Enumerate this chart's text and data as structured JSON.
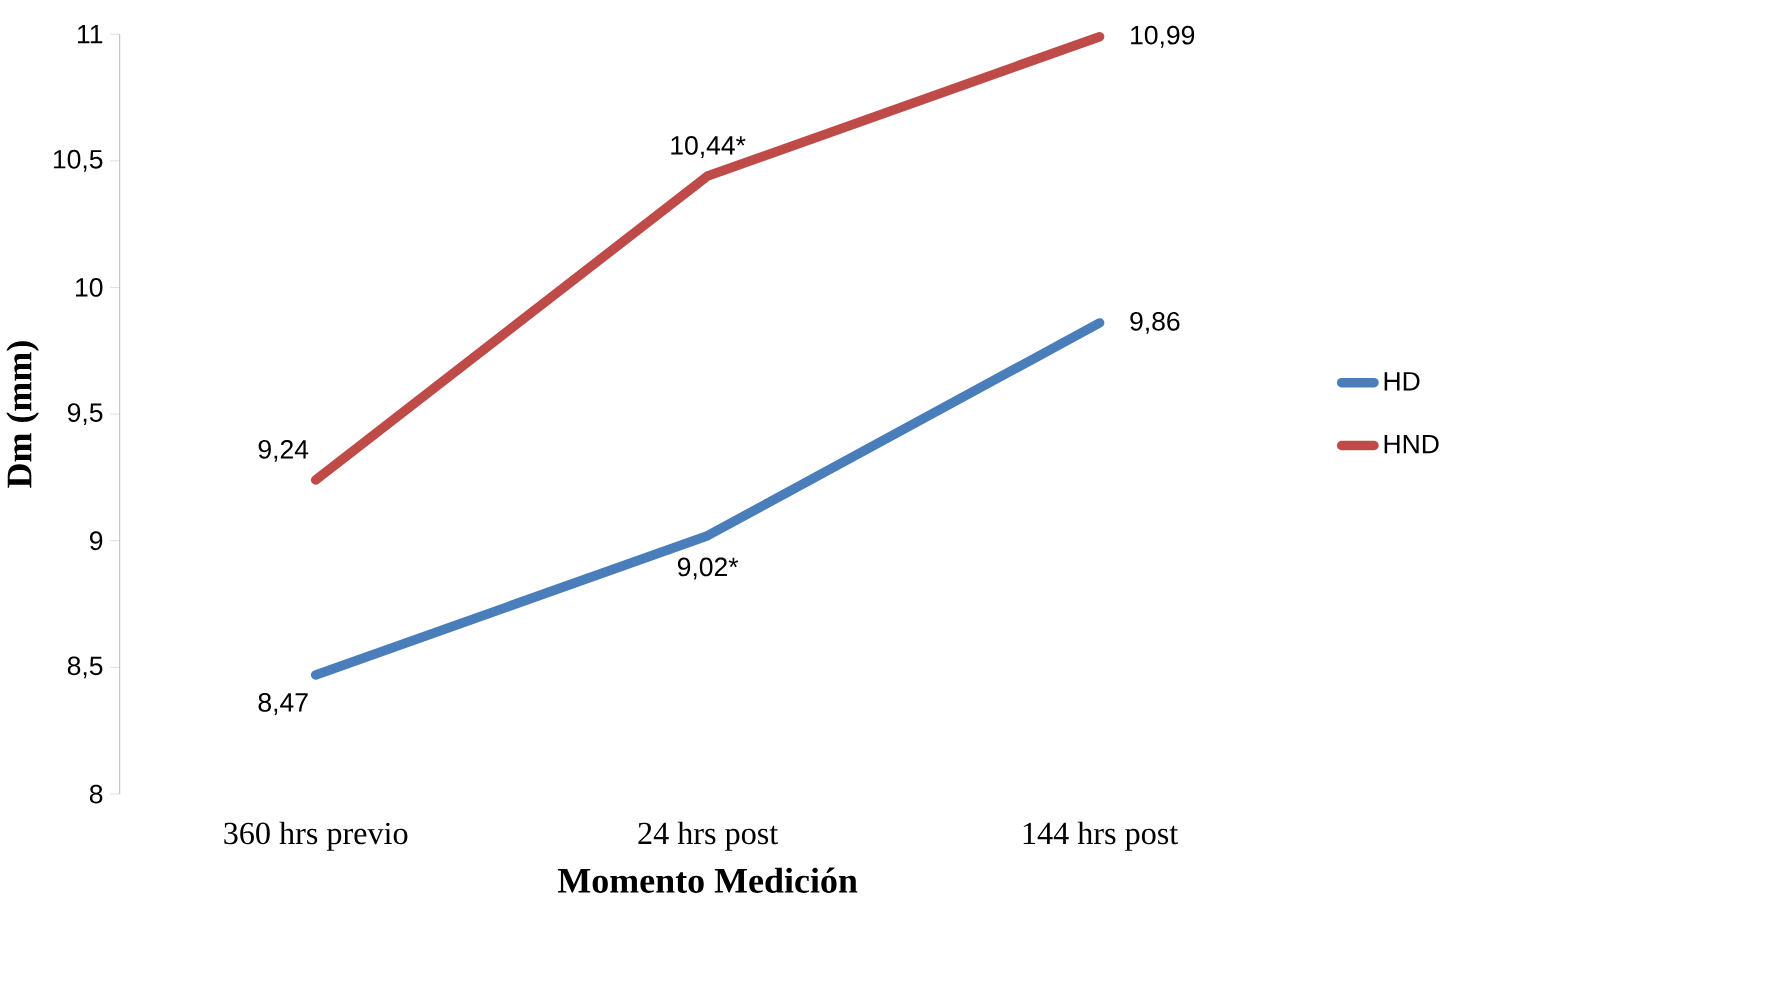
{
  "chart_data": {
    "type": "line",
    "xlabel": "Momento Medición",
    "ylabel": "Dm (mm)",
    "categories": [
      "360 hrs previo",
      "24 hrs post",
      "144 hrs post"
    ],
    "series": [
      {
        "name": "HD",
        "color": "#4a7ebb",
        "values": [
          8.47,
          9.02,
          9.86
        ],
        "value_labels": [
          "8,47",
          "9,02*",
          "9,86"
        ]
      },
      {
        "name": "HND",
        "color": "#be4b48",
        "values": [
          9.24,
          10.44,
          10.99
        ],
        "value_labels": [
          "9,24",
          "10,44*",
          "10,99"
        ]
      }
    ],
    "ylim": [
      8,
      11
    ],
    "yticks": [
      8,
      {
        "value": 8.5,
        "label": "8,5"
      },
      9,
      {
        "value": 9.5,
        "label": "9,5"
      },
      10,
      {
        "value": 10.5,
        "label": "10,5"
      },
      11
    ],
    "legend": "right",
    "marker": "none",
    "line_style": "solid",
    "grid": false
  }
}
